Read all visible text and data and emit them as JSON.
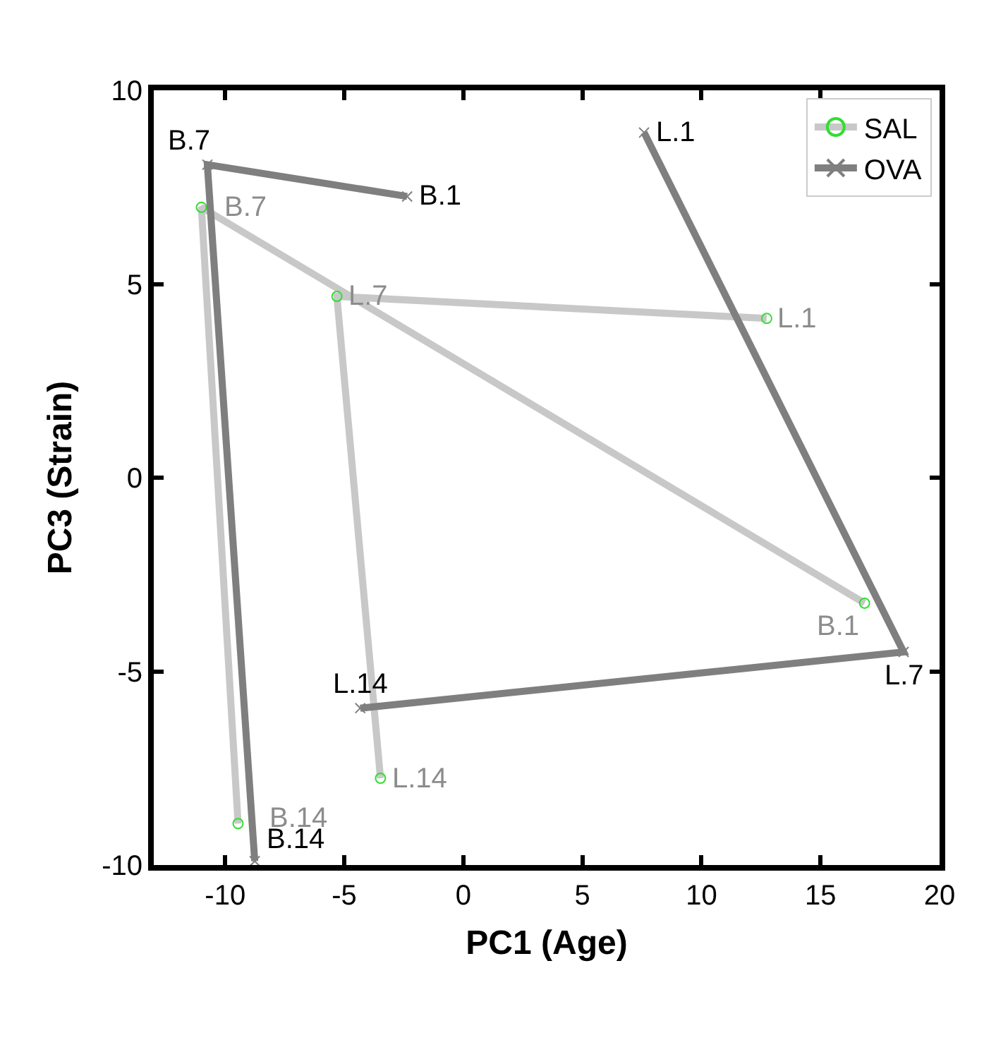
{
  "chart_data": {
    "type": "line",
    "xlabel": "PC1 (Age)",
    "ylabel": "PC3 (Strain)",
    "xlim": [
      -13,
      20
    ],
    "xticks": [
      -10,
      -5,
      0,
      5,
      10,
      15,
      20
    ],
    "ylim": [
      -10,
      10
    ],
    "yticks": [
      -10,
      -5,
      0,
      5,
      10
    ],
    "grid": false,
    "legend": "top right",
    "series": [
      {
        "name": "SAL",
        "color": "#c8c8c8",
        "marker": "circle",
        "x": [
          16.85,
          -11.0,
          -9.46,
          null,
          12.74,
          -5.31,
          -3.48
        ],
        "values": [
          -3.24,
          6.98,
          -8.93,
          null,
          4.11,
          4.68,
          -7.76
        ],
        "value_labels": [
          "B.1",
          "B.7",
          "B.14",
          null,
          "L.1",
          "L.7",
          "L.14"
        ]
      },
      {
        "name": "OVA",
        "color": "#7f7f7f",
        "marker": "cross",
        "x": [
          -2.36,
          -10.75,
          -8.76,
          null,
          7.59,
          18.49,
          -4.33
        ],
        "values": [
          7.26,
          8.08,
          -9.9,
          null,
          8.91,
          -4.5,
          -5.95
        ],
        "value_labels": [
          "B.1",
          "B.7",
          "B.14",
          null,
          "L.1",
          "L.7",
          "L.14"
        ]
      }
    ]
  }
}
